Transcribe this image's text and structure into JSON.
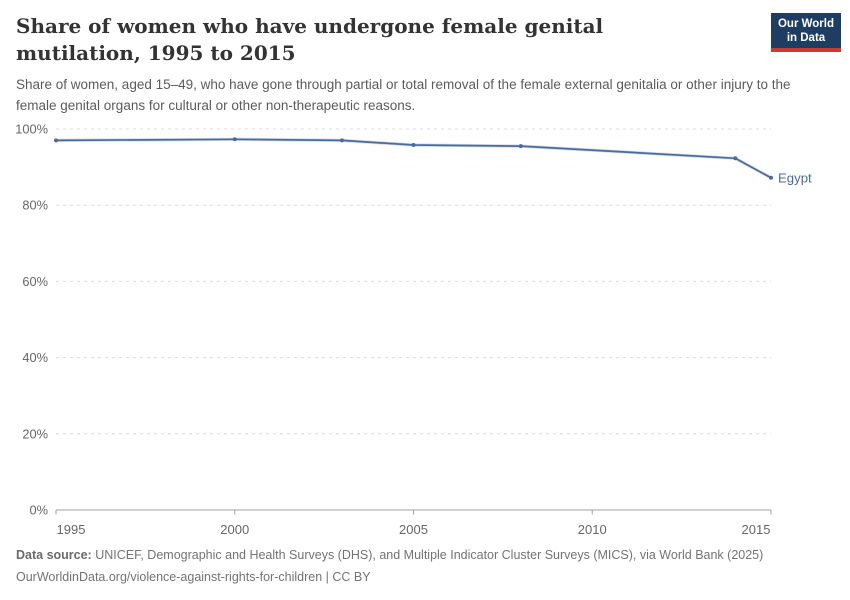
{
  "chart_data": {
    "type": "line",
    "title": "Share of women who have undergone female genital mutilation, 1995 to 2015",
    "subtitle": "Share of women, aged 15–49, who have gone through partial or total removal of the female external genitalia or other injury to the female genital organs for cultural or other non-therapeutic reasons.",
    "xlabel": "",
    "ylabel": "",
    "xlim": [
      1995,
      2015
    ],
    "ylim": [
      0,
      100
    ],
    "xticks": [
      1995,
      2000,
      2005,
      2010,
      2015
    ],
    "yticks": [
      0,
      20,
      40,
      60,
      80,
      100
    ],
    "y_tick_suffix": "%",
    "grid": "horizontal-dashed",
    "legend_position": "end-of-line-label",
    "series": [
      {
        "name": "Egypt",
        "color": "#4c6a9c",
        "halo_color": "#a9bdd8",
        "points": [
          [
            1995,
            97.0
          ],
          [
            2000,
            97.3
          ],
          [
            2003,
            97.0
          ],
          [
            2005,
            95.8
          ],
          [
            2008,
            95.5
          ],
          [
            2014,
            92.3
          ],
          [
            2015,
            87.2
          ]
        ]
      }
    ]
  },
  "header": {
    "logo": {
      "line1": "Our World",
      "line2": "in Data",
      "bg_color": "#1d3d63",
      "accent_color": "#cc3b33"
    }
  },
  "footer": {
    "source_label": "Data source:",
    "source_text": "UNICEF, Demographic and Health Surveys (DHS), and Multiple Indicator Cluster Surveys (MICS), via World Bank (2025)",
    "link": "OurWorldinData.org/violence-against-rights-for-children",
    "license": "| CC BY"
  },
  "colors": {
    "title": "#333333",
    "subtitle": "#5b5b5b",
    "axis_label": "#666666",
    "axis_line": "#a1a1a1",
    "gridline": "#dcdcdc",
    "footer_text": "#737373"
  }
}
